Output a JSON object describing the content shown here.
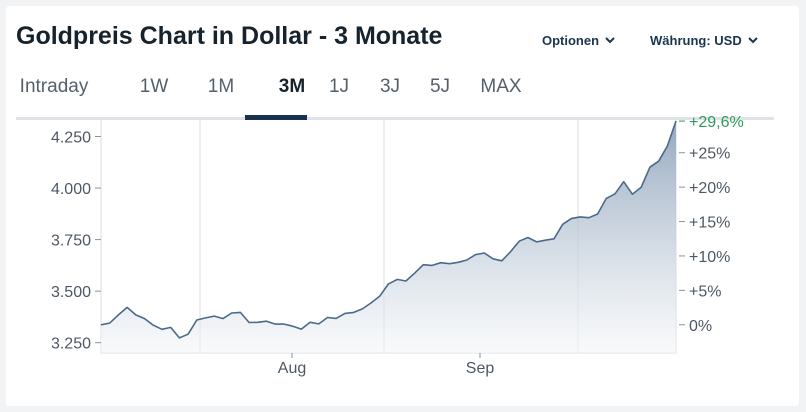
{
  "title": "Goldpreis Chart in Dollar - 3 Monate",
  "options_label": "Optionen",
  "currency_label": "Währung: USD",
  "tabs": [
    "Intraday",
    "1W",
    "1M",
    "3M",
    "1J",
    "3J",
    "5J",
    "MAX"
  ],
  "active_tab": "3M",
  "colors": {
    "line": "#4a6a8c",
    "fill_top": "#8fa4bb",
    "fill_bottom": "#f4f6f9",
    "grid": "#d9dde2",
    "positive": "#2c9a5a",
    "active_tab": "#17314e"
  },
  "chart_data": {
    "type": "area",
    "title": "",
    "xlabel": "",
    "ylabel": "",
    "x_ticks": [
      "Aug",
      "Sep"
    ],
    "y_ticks": [
      3250,
      3500,
      3750,
      4000,
      4250
    ],
    "y_tick_labels": [
      "3.250",
      "3.500",
      "3.750",
      "4.000",
      "4.250"
    ],
    "ylim": [
      3200,
      4330
    ],
    "right_axis_ticks": [
      "0%",
      "+5%",
      "+10%",
      "+15%",
      "+20%",
      "+25%"
    ],
    "right_axis_values": [
      0,
      5,
      10,
      15,
      20,
      25
    ],
    "right_axis_last_label": "+29,6%",
    "right_axis_last_value": 29.6,
    "baseline": 3337,
    "grid": true,
    "legend": "none",
    "series": [
      {
        "values": [
          3337,
          3345,
          3385,
          3421,
          3385,
          3367,
          3335,
          3315,
          3324,
          3273,
          3291,
          3360,
          3370,
          3379,
          3367,
          3394,
          3397,
          3348,
          3349,
          3354,
          3340,
          3340,
          3330,
          3316,
          3349,
          3341,
          3372,
          3368,
          3392,
          3397,
          3414,
          3443,
          3476,
          3535,
          3557,
          3549,
          3587,
          3628,
          3625,
          3638,
          3633,
          3640,
          3651,
          3677,
          3685,
          3657,
          3647,
          3691,
          3742,
          3760,
          3739,
          3747,
          3754,
          3824,
          3853,
          3860,
          3856,
          3874,
          3950,
          3972,
          4031,
          3970,
          4004,
          4101,
          4130,
          4203,
          4325
        ]
      }
    ]
  }
}
